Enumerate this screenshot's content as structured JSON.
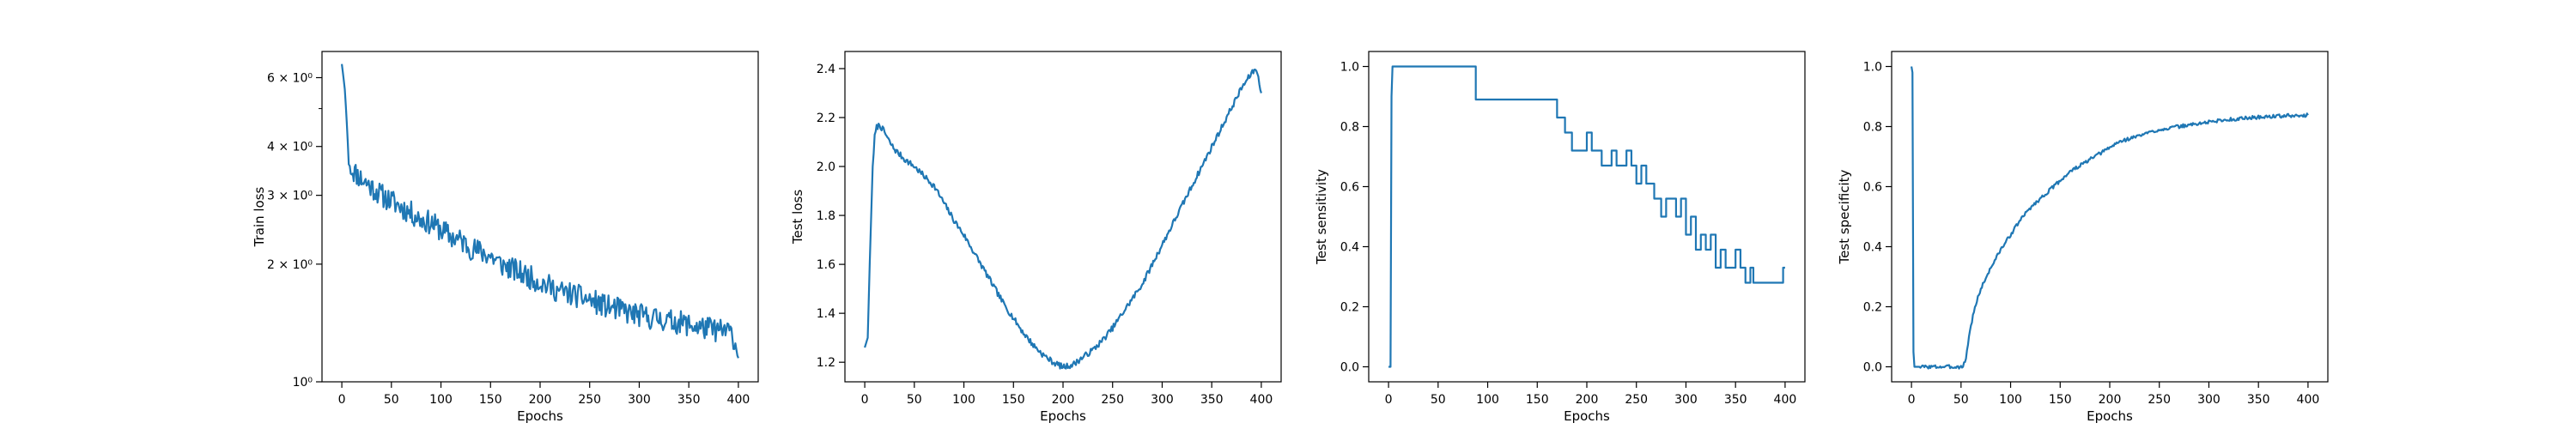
{
  "figure": {
    "line_color": "#1f77b4"
  },
  "chart_data": [
    {
      "type": "line",
      "xlabel": "Epochs",
      "ylabel": "Train loss",
      "yscale": "log",
      "xlim": [
        -20,
        420
      ],
      "ylim": [
        1.0,
        7.0
      ],
      "xticks": [
        0,
        50,
        100,
        150,
        200,
        250,
        300,
        350,
        400
      ],
      "yticks": [
        {
          "value": 1,
          "label": "10⁰"
        },
        {
          "value": 2,
          "label": "2 × 10⁰"
        },
        {
          "value": 3,
          "label": "3 × 10⁰"
        },
        {
          "value": 4,
          "label": "4 × 10⁰"
        },
        {
          "value": 6,
          "label": "6 × 10⁰"
        }
      ],
      "series": [
        {
          "points": [
            [
              0,
              6.5
            ],
            [
              3,
              5.6
            ],
            [
              5,
              4.6
            ],
            [
              7,
              3.6
            ],
            [
              10,
              3.5
            ],
            [
              20,
              3.3
            ],
            [
              30,
              3.15
            ],
            [
              40,
              3.0
            ],
            [
              50,
              2.9
            ],
            [
              60,
              2.8
            ],
            [
              70,
              2.7
            ],
            [
              80,
              2.6
            ],
            [
              90,
              2.55
            ],
            [
              100,
              2.45
            ],
            [
              110,
              2.35
            ],
            [
              120,
              2.3
            ],
            [
              130,
              2.2
            ],
            [
              140,
              2.15
            ],
            [
              150,
              2.1
            ],
            [
              160,
              2.0
            ],
            [
              170,
              1.95
            ],
            [
              180,
              1.9
            ],
            [
              190,
              1.85
            ],
            [
              200,
              1.8
            ],
            [
              210,
              1.75
            ],
            [
              220,
              1.7
            ],
            [
              230,
              1.68
            ],
            [
              240,
              1.65
            ],
            [
              250,
              1.62
            ],
            [
              260,
              1.58
            ],
            [
              270,
              1.55
            ],
            [
              280,
              1.53
            ],
            [
              290,
              1.5
            ],
            [
              300,
              1.48
            ],
            [
              310,
              1.46
            ],
            [
              320,
              1.45
            ],
            [
              330,
              1.43
            ],
            [
              340,
              1.42
            ],
            [
              350,
              1.4
            ],
            [
              360,
              1.38
            ],
            [
              370,
              1.37
            ],
            [
              380,
              1.35
            ],
            [
              390,
              1.35
            ],
            [
              395,
              1.3
            ],
            [
              400,
              1.15
            ]
          ],
          "noise": 0.07,
          "seed": 11
        }
      ]
    },
    {
      "type": "line",
      "xlabel": "Epochs",
      "ylabel": "Test loss",
      "xlim": [
        -20,
        420
      ],
      "ylim": [
        1.12,
        2.47
      ],
      "xticks": [
        0,
        50,
        100,
        150,
        200,
        250,
        300,
        350,
        400
      ],
      "yticks": [
        {
          "value": 1.2,
          "label": "1.2"
        },
        {
          "value": 1.4,
          "label": "1.4"
        },
        {
          "value": 1.6,
          "label": "1.6"
        },
        {
          "value": 1.8,
          "label": "1.8"
        },
        {
          "value": 2.0,
          "label": "2.0"
        },
        {
          "value": 2.2,
          "label": "2.2"
        },
        {
          "value": 2.4,
          "label": "2.4"
        }
      ],
      "series": [
        {
          "points": [
            [
              0,
              1.26
            ],
            [
              3,
              1.3
            ],
            [
              5,
              1.6
            ],
            [
              8,
              2.0
            ],
            [
              10,
              2.12
            ],
            [
              12,
              2.16
            ],
            [
              15,
              2.17
            ],
            [
              20,
              2.14
            ],
            [
              25,
              2.1
            ],
            [
              30,
              2.07
            ],
            [
              40,
              2.03
            ],
            [
              50,
              2.0
            ],
            [
              60,
              1.96
            ],
            [
              70,
              1.92
            ],
            [
              80,
              1.85
            ],
            [
              90,
              1.78
            ],
            [
              100,
              1.72
            ],
            [
              110,
              1.65
            ],
            [
              120,
              1.58
            ],
            [
              130,
              1.51
            ],
            [
              140,
              1.44
            ],
            [
              150,
              1.38
            ],
            [
              160,
              1.32
            ],
            [
              170,
              1.27
            ],
            [
              180,
              1.23
            ],
            [
              190,
              1.2
            ],
            [
              200,
              1.18
            ],
            [
              210,
              1.19
            ],
            [
              220,
              1.22
            ],
            [
              230,
              1.25
            ],
            [
              240,
              1.29
            ],
            [
              250,
              1.34
            ],
            [
              260,
              1.4
            ],
            [
              270,
              1.46
            ],
            [
              280,
              1.52
            ],
            [
              290,
              1.6
            ],
            [
              300,
              1.68
            ],
            [
              310,
              1.76
            ],
            [
              320,
              1.84
            ],
            [
              330,
              1.92
            ],
            [
              340,
              2.0
            ],
            [
              350,
              2.08
            ],
            [
              360,
              2.16
            ],
            [
              370,
              2.24
            ],
            [
              380,
              2.32
            ],
            [
              390,
              2.38
            ],
            [
              395,
              2.4
            ],
            [
              400,
              2.3
            ]
          ],
          "noise": 0.012,
          "seed": 7
        }
      ]
    },
    {
      "type": "line",
      "xlabel": "Epochs",
      "ylabel": "Test sensitivity",
      "xlim": [
        -20,
        420
      ],
      "ylim": [
        -0.05,
        1.05
      ],
      "xticks": [
        0,
        50,
        100,
        150,
        200,
        250,
        300,
        350,
        400
      ],
      "yticks": [
        {
          "value": 0.0,
          "label": "0.0"
        },
        {
          "value": 0.2,
          "label": "0.2"
        },
        {
          "value": 0.4,
          "label": "0.4"
        },
        {
          "value": 0.6,
          "label": "0.6"
        },
        {
          "value": 0.8,
          "label": "0.8"
        },
        {
          "value": 1.0,
          "label": "1.0"
        }
      ],
      "series": [
        {
          "points": [
            [
              0,
              0.0
            ],
            [
              2,
              0.0
            ],
            [
              3,
              0.9
            ],
            [
              4,
              1.0
            ],
            [
              88,
              1.0
            ],
            [
              88,
              0.89
            ],
            [
              170,
              0.89
            ],
            [
              170,
              0.83
            ],
            [
              178,
              0.83
            ],
            [
              178,
              0.78
            ],
            [
              185,
              0.78
            ],
            [
              185,
              0.72
            ],
            [
              200,
              0.72
            ],
            [
              200,
              0.78
            ],
            [
              205,
              0.78
            ],
            [
              205,
              0.72
            ],
            [
              215,
              0.72
            ],
            [
              215,
              0.67
            ],
            [
              225,
              0.67
            ],
            [
              225,
              0.72
            ],
            [
              230,
              0.72
            ],
            [
              230,
              0.67
            ],
            [
              240,
              0.67
            ],
            [
              240,
              0.72
            ],
            [
              245,
              0.72
            ],
            [
              245,
              0.67
            ],
            [
              250,
              0.67
            ],
            [
              250,
              0.61
            ],
            [
              255,
              0.61
            ],
            [
              255,
              0.67
            ],
            [
              260,
              0.67
            ],
            [
              260,
              0.61
            ],
            [
              268,
              0.61
            ],
            [
              268,
              0.56
            ],
            [
              275,
              0.56
            ],
            [
              275,
              0.5
            ],
            [
              280,
              0.5
            ],
            [
              280,
              0.56
            ],
            [
              290,
              0.56
            ],
            [
              290,
              0.5
            ],
            [
              295,
              0.5
            ],
            [
              295,
              0.56
            ],
            [
              300,
              0.56
            ],
            [
              300,
              0.44
            ],
            [
              305,
              0.44
            ],
            [
              305,
              0.5
            ],
            [
              310,
              0.5
            ],
            [
              310,
              0.39
            ],
            [
              315,
              0.39
            ],
            [
              315,
              0.44
            ],
            [
              320,
              0.44
            ],
            [
              320,
              0.39
            ],
            [
              325,
              0.39
            ],
            [
              325,
              0.44
            ],
            [
              330,
              0.44
            ],
            [
              330,
              0.33
            ],
            [
              335,
              0.33
            ],
            [
              335,
              0.39
            ],
            [
              340,
              0.39
            ],
            [
              340,
              0.33
            ],
            [
              350,
              0.33
            ],
            [
              350,
              0.39
            ],
            [
              355,
              0.39
            ],
            [
              355,
              0.33
            ],
            [
              360,
              0.33
            ],
            [
              360,
              0.28
            ],
            [
              365,
              0.28
            ],
            [
              365,
              0.33
            ],
            [
              368,
              0.33
            ],
            [
              368,
              0.28
            ],
            [
              398,
              0.28
            ],
            [
              398,
              0.33
            ],
            [
              400,
              0.33
            ]
          ],
          "noise": 0,
          "seed": 1
        }
      ]
    },
    {
      "type": "line",
      "xlabel": "Epochs",
      "ylabel": "Test specificity",
      "xlim": [
        -20,
        420
      ],
      "ylim": [
        -0.05,
        1.05
      ],
      "xticks": [
        0,
        50,
        100,
        150,
        200,
        250,
        300,
        350,
        400
      ],
      "yticks": [
        {
          "value": 0.0,
          "label": "0.0"
        },
        {
          "value": 0.2,
          "label": "0.2"
        },
        {
          "value": 0.4,
          "label": "0.4"
        },
        {
          "value": 0.6,
          "label": "0.6"
        },
        {
          "value": 0.8,
          "label": "0.8"
        },
        {
          "value": 1.0,
          "label": "1.0"
        }
      ],
      "series": [
        {
          "points": [
            [
              0,
              1.0
            ],
            [
              1,
              0.98
            ],
            [
              2,
              0.05
            ],
            [
              3,
              0.0
            ],
            [
              52,
              0.0
            ],
            [
              55,
              0.03
            ],
            [
              58,
              0.1
            ],
            [
              62,
              0.17
            ],
            [
              66,
              0.22
            ],
            [
              70,
              0.26
            ],
            [
              80,
              0.33
            ],
            [
              90,
              0.39
            ],
            [
              100,
              0.44
            ],
            [
              110,
              0.49
            ],
            [
              120,
              0.53
            ],
            [
              130,
              0.56
            ],
            [
              140,
              0.59
            ],
            [
              150,
              0.62
            ],
            [
              160,
              0.65
            ],
            [
              170,
              0.67
            ],
            [
              180,
              0.69
            ],
            [
              190,
              0.71
            ],
            [
              200,
              0.73
            ],
            [
              210,
              0.75
            ],
            [
              220,
              0.76
            ],
            [
              230,
              0.77
            ],
            [
              240,
              0.78
            ],
            [
              250,
              0.79
            ],
            [
              260,
              0.795
            ],
            [
              270,
              0.8
            ],
            [
              280,
              0.805
            ],
            [
              290,
              0.81
            ],
            [
              300,
              0.815
            ],
            [
              310,
              0.82
            ],
            [
              320,
              0.823
            ],
            [
              330,
              0.826
            ],
            [
              340,
              0.829
            ],
            [
              350,
              0.831
            ],
            [
              360,
              0.833
            ],
            [
              370,
              0.835
            ],
            [
              380,
              0.836
            ],
            [
              390,
              0.835
            ],
            [
              400,
              0.838
            ]
          ],
          "noise": 0.006,
          "seed": 3
        }
      ]
    }
  ]
}
